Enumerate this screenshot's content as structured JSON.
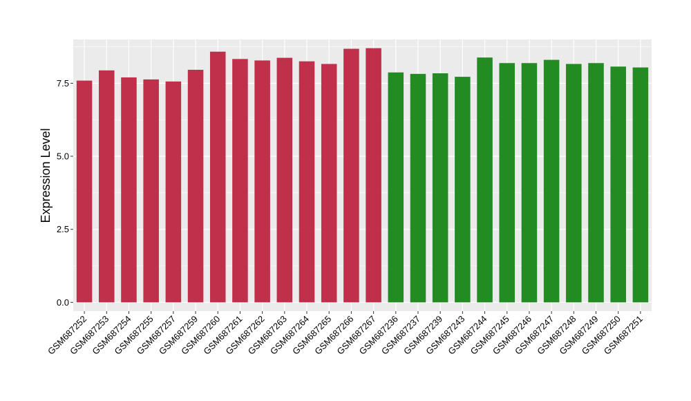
{
  "chart_data": {
    "type": "bar",
    "title": "",
    "xlabel": "",
    "ylabel": "Expression Level",
    "ylim": [
      -0.3,
      9.0
    ],
    "yticks": [
      0.0,
      2.5,
      5.0,
      7.5
    ],
    "ytick_labels": [
      "0.0",
      "2.5",
      "5.0",
      "7.5"
    ],
    "grid": true,
    "legend": "none",
    "background_color": "#ebebeb",
    "grid_color": "#ffffff",
    "categories": [
      "GSM687252",
      "GSM687253",
      "GSM687254",
      "GSM687255",
      "GSM687257",
      "GSM687259",
      "GSM687260",
      "GSM687261",
      "GSM687262",
      "GSM687263",
      "GSM687264",
      "GSM687265",
      "GSM687266",
      "GSM687267",
      "GSM687236",
      "GSM687237",
      "GSM687239",
      "GSM687243",
      "GSM687244",
      "GSM687245",
      "GSM687246",
      "GSM687247",
      "GSM687248",
      "GSM687249",
      "GSM687250",
      "GSM687251"
    ],
    "values": [
      7.59,
      7.94,
      7.7,
      7.63,
      7.56,
      7.96,
      8.58,
      8.33,
      8.28,
      8.37,
      8.25,
      8.16,
      8.68,
      8.7,
      7.87,
      7.82,
      7.84,
      7.72,
      8.38,
      8.19,
      8.19,
      8.3,
      8.16,
      8.19,
      8.07,
      8.04
    ],
    "bar_colors": [
      "#c0304a",
      "#c0304a",
      "#c0304a",
      "#c0304a",
      "#c0304a",
      "#c0304a",
      "#c0304a",
      "#c0304a",
      "#c0304a",
      "#c0304a",
      "#c0304a",
      "#c0304a",
      "#c0304a",
      "#c0304a",
      "#228b22",
      "#228b22",
      "#228b22",
      "#228b22",
      "#228b22",
      "#228b22",
      "#228b22",
      "#228b22",
      "#228b22",
      "#228b22",
      "#228b22",
      "#228b22"
    ]
  }
}
